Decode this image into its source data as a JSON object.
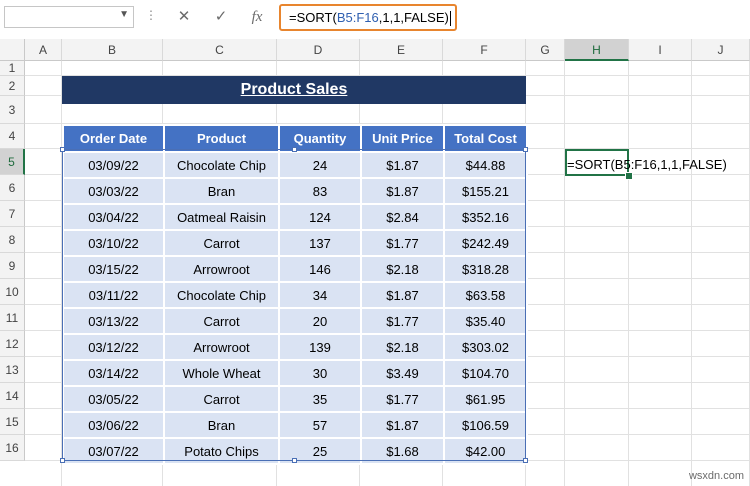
{
  "formula_bar": {
    "name_box": "",
    "cancel_icon": "✕",
    "enter_icon": "✓",
    "fx_label": "fx",
    "formula_prefix": "=SORT(",
    "formula_ref": "B5:F16",
    "formula_suffix": ",1,1,FALSE)"
  },
  "columns": [
    "A",
    "B",
    "C",
    "D",
    "E",
    "F",
    "G",
    "H",
    "I",
    "J"
  ],
  "rows": [
    "1",
    "2",
    "3",
    "4",
    "5",
    "6",
    "7",
    "8",
    "9",
    "10",
    "11",
    "12",
    "13",
    "14",
    "15",
    "16"
  ],
  "active_column": "H",
  "active_row": "5",
  "title": "Product Sales",
  "table": {
    "headers": [
      "Order Date",
      "Product",
      "Quantity",
      "Unit Price",
      "Total Cost"
    ],
    "rows": [
      [
        "03/09/22",
        "Chocolate Chip",
        "24",
        "$1.87",
        "$44.88"
      ],
      [
        "03/03/22",
        "Bran",
        "83",
        "$1.87",
        "$155.21"
      ],
      [
        "03/04/22",
        "Oatmeal Raisin",
        "124",
        "$2.84",
        "$352.16"
      ],
      [
        "03/10/22",
        "Carrot",
        "137",
        "$1.77",
        "$242.49"
      ],
      [
        "03/15/22",
        "Arrowroot",
        "146",
        "$2.18",
        "$318.28"
      ],
      [
        "03/11/22",
        "Chocolate Chip",
        "34",
        "$1.87",
        "$63.58"
      ],
      [
        "03/13/22",
        "Carrot",
        "20",
        "$1.77",
        "$35.40"
      ],
      [
        "03/12/22",
        "Arrowroot",
        "139",
        "$2.18",
        "$303.02"
      ],
      [
        "03/14/22",
        "Whole Wheat",
        "30",
        "$3.49",
        "$104.70"
      ],
      [
        "03/05/22",
        "Carrot",
        "35",
        "$1.77",
        "$61.95"
      ],
      [
        "03/06/22",
        "Bran",
        "57",
        "$1.87",
        "$106.59"
      ],
      [
        "03/07/22",
        "Potato Chips",
        "25",
        "$1.68",
        "$42.00"
      ]
    ]
  },
  "cell_h5": "=SORT(B5:F16,1,1,FALSE)",
  "watermark": "wsxdn.com"
}
